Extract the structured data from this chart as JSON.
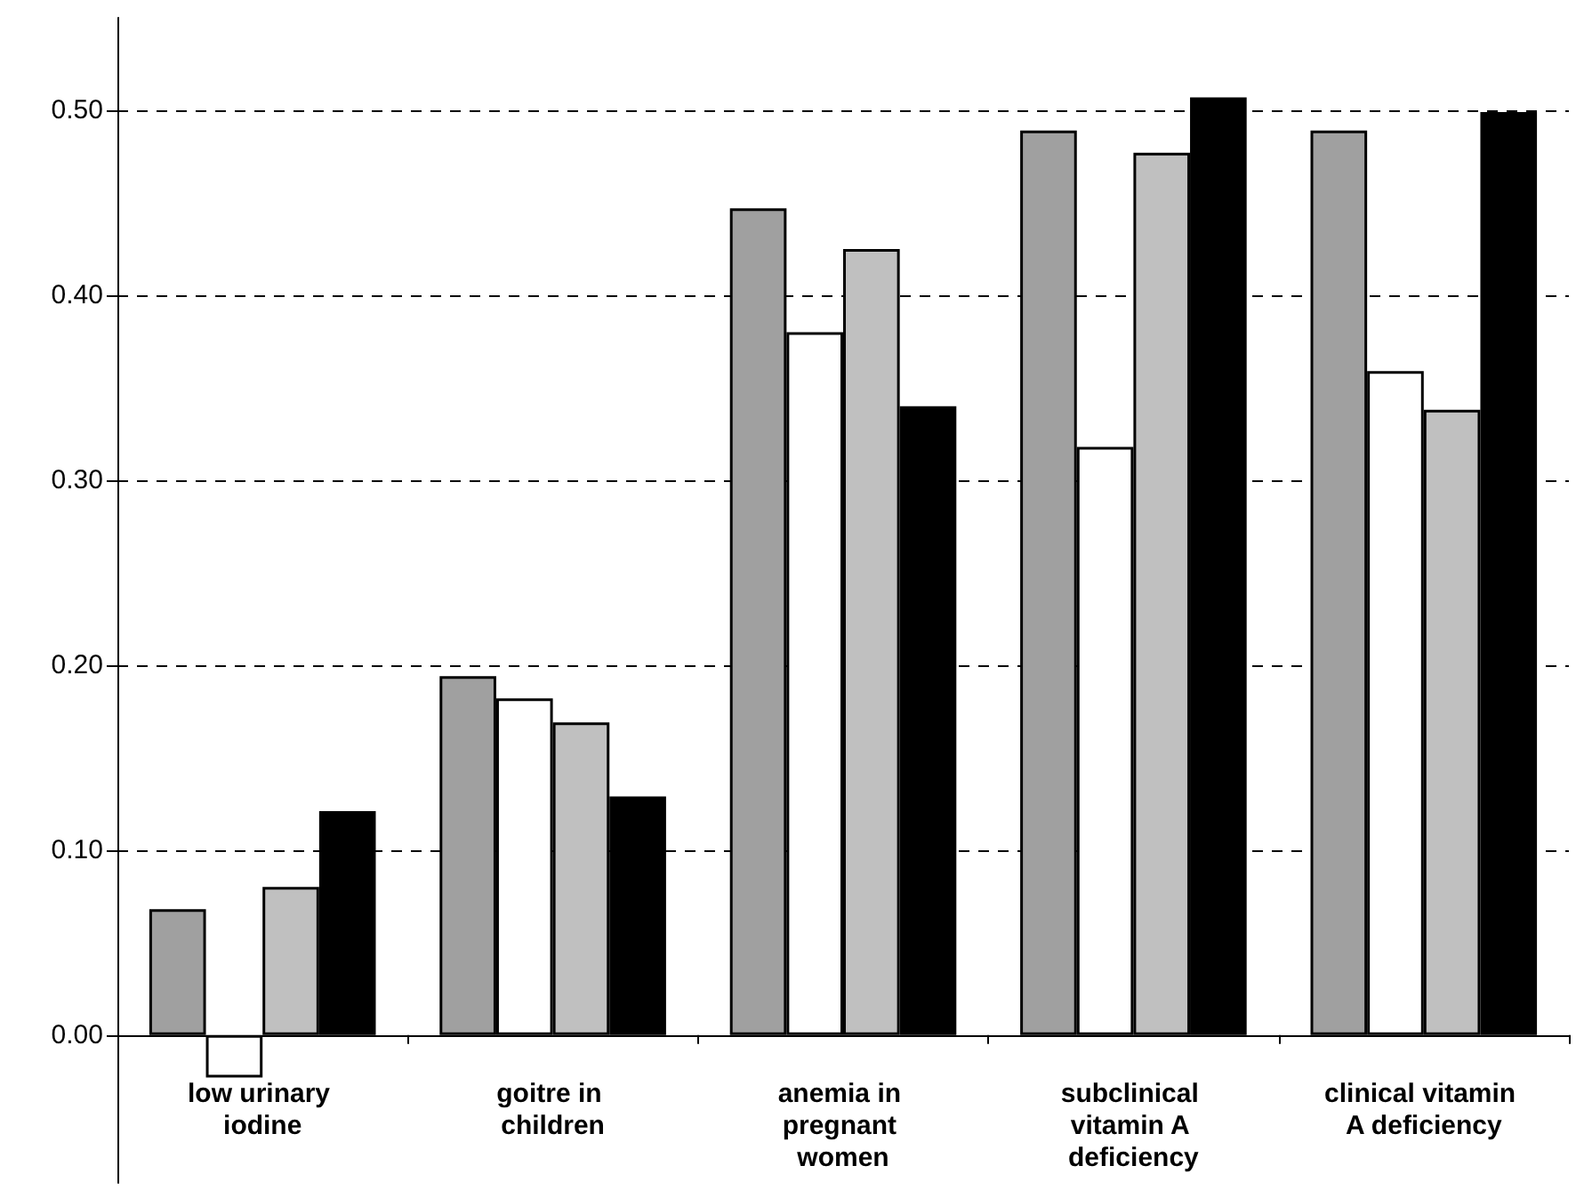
{
  "chart_data": {
    "type": "bar",
    "categories": [
      "low urinary iodine",
      "goitre in children",
      "anemia in pregnant women",
      "subclinical vitamin A deficiency",
      "clinical vitamin A deficiency"
    ],
    "series": [
      {
        "color": "#a0a0a0",
        "values": [
          0.068,
          0.194,
          0.447,
          0.489,
          0.489
        ]
      },
      {
        "color": "#ffffff",
        "values": [
          -0.023,
          0.182,
          0.38,
          0.318,
          0.359
        ]
      },
      {
        "color": "#c0c0c0",
        "values": [
          0.08,
          0.169,
          0.425,
          0.477,
          0.338
        ]
      },
      {
        "color": "#000000",
        "values": [
          0.121,
          0.129,
          0.34,
          0.507,
          0.499
        ]
      }
    ],
    "ylim": [
      -0.08,
      0.55
    ],
    "yticks": [
      {
        "value": 0,
        "label": "0.00"
      },
      {
        "value": 0.1,
        "label": "0.10"
      },
      {
        "value": 0.2,
        "label": "0.20"
      },
      {
        "value": 0.3,
        "label": "0.30"
      },
      {
        "value": 0.4,
        "label": "0.40"
      },
      {
        "value": 0.5,
        "label": "0.50"
      }
    ],
    "grid": "y"
  }
}
